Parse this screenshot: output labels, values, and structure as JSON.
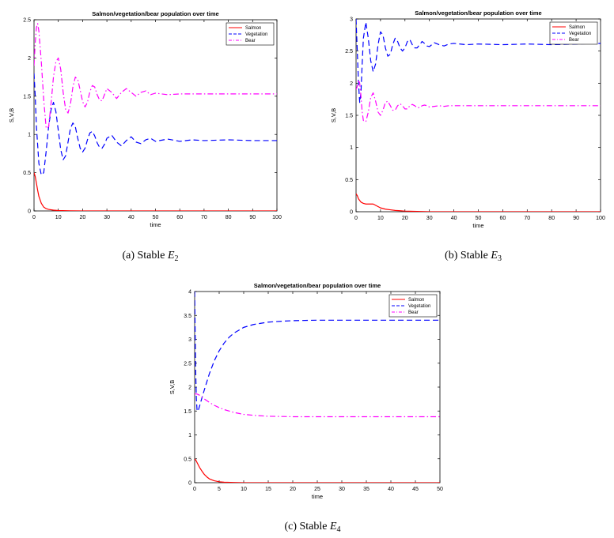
{
  "figures": [
    {
      "caption_prefix": "(a)  Stable ",
      "caption_var": "E",
      "caption_sub": "2"
    },
    {
      "caption_prefix": "(b)  Stable ",
      "caption_var": "E",
      "caption_sub": "3"
    },
    {
      "caption_prefix": "(c)  Stable ",
      "caption_var": "E",
      "caption_sub": "4"
    }
  ],
  "chart_data": [
    {
      "type": "line",
      "title": "Salmon/vegetation/bear population over time",
      "xlabel": "time",
      "ylabel": "S,V,B",
      "xlim": [
        0,
        100
      ],
      "ylim": [
        0,
        2.5
      ],
      "xticks": [
        0,
        10,
        20,
        30,
        40,
        50,
        60,
        70,
        80,
        90,
        100
      ],
      "yticks": [
        0,
        0.5,
        1,
        1.5,
        2,
        2.5
      ],
      "ytick_labels": [
        "0",
        "0.5",
        "1",
        "1.5",
        "2",
        "2.5"
      ],
      "legend_position": "top-right",
      "series": [
        {
          "name": "Salmon",
          "color": "#ff0000",
          "dash": "solid",
          "x": [
            0,
            0.5,
            1,
            1.5,
            2,
            3,
            4,
            5,
            6,
            8,
            10,
            15,
            20,
            100
          ],
          "y": [
            0.5,
            0.45,
            0.36,
            0.27,
            0.19,
            0.1,
            0.05,
            0.03,
            0.02,
            0.01,
            0.005,
            0.002,
            0,
            0
          ]
        },
        {
          "name": "Vegetation",
          "color": "#0000ff",
          "dash": "dashed",
          "x": [
            0,
            0.5,
            1,
            2,
            3,
            4,
            5,
            6,
            7,
            8,
            9,
            10,
            11,
            12,
            13,
            14,
            15,
            16,
            17,
            18,
            19,
            20,
            21,
            22,
            23,
            24,
            25,
            26,
            27,
            28,
            29,
            30,
            32,
            34,
            36,
            38,
            40,
            42,
            44,
            46,
            48,
            50,
            55,
            60,
            65,
            70,
            80,
            90,
            100
          ],
          "y": [
            1.8,
            1.5,
            1.1,
            0.62,
            0.47,
            0.5,
            0.78,
            1.1,
            1.32,
            1.42,
            1.3,
            1.05,
            0.8,
            0.67,
            0.72,
            0.9,
            1.08,
            1.15,
            1.1,
            0.95,
            0.82,
            0.77,
            0.82,
            0.93,
            1.02,
            1.04,
            0.98,
            0.89,
            0.83,
            0.82,
            0.87,
            0.95,
            0.99,
            0.9,
            0.85,
            0.92,
            0.97,
            0.9,
            0.88,
            0.93,
            0.95,
            0.91,
            0.94,
            0.91,
            0.93,
            0.92,
            0.93,
            0.92,
            0.92
          ]
        },
        {
          "name": "Bear",
          "color": "#ff00ff",
          "dash": "dashdot",
          "x": [
            0,
            0.5,
            1,
            1.5,
            2,
            3,
            4,
            5,
            6,
            7,
            8,
            9,
            10,
            11,
            12,
            13,
            14,
            15,
            16,
            17,
            18,
            19,
            20,
            21,
            22,
            23,
            24,
            25,
            26,
            27,
            28,
            29,
            30,
            32,
            34,
            36,
            38,
            40,
            42,
            44,
            46,
            48,
            50,
            55,
            60,
            65,
            70,
            80,
            90,
            100
          ],
          "y": [
            1.9,
            2.2,
            2.4,
            2.45,
            2.35,
            1.95,
            1.45,
            1.08,
            1.1,
            1.4,
            1.75,
            1.95,
            2.0,
            1.85,
            1.55,
            1.33,
            1.28,
            1.4,
            1.62,
            1.75,
            1.72,
            1.58,
            1.43,
            1.36,
            1.42,
            1.56,
            1.64,
            1.62,
            1.52,
            1.45,
            1.44,
            1.52,
            1.6,
            1.55,
            1.47,
            1.55,
            1.6,
            1.55,
            1.5,
            1.55,
            1.57,
            1.52,
            1.54,
            1.52,
            1.53,
            1.53,
            1.53,
            1.53,
            1.53,
            1.53
          ]
        }
      ]
    },
    {
      "type": "line",
      "title": "Salmon/vegetation/bear population over time",
      "xlabel": "time",
      "ylabel": "S,V,B",
      "xlim": [
        0,
        100
      ],
      "ylim": [
        0,
        3
      ],
      "xticks": [
        0,
        10,
        20,
        30,
        40,
        50,
        60,
        70,
        80,
        90,
        100
      ],
      "yticks": [
        0,
        0.5,
        1,
        1.5,
        2,
        2.5,
        3
      ],
      "ytick_labels": [
        "0",
        "0.5",
        "1",
        "1.5",
        "2",
        "2.5",
        "3"
      ],
      "legend_position": "top-right",
      "series": [
        {
          "name": "Salmon",
          "color": "#ff0000",
          "dash": "solid",
          "x": [
            0,
            0.5,
            1,
            2,
            3,
            4,
            5,
            6,
            7,
            8,
            9,
            10,
            12,
            14,
            16,
            18,
            20,
            25,
            30,
            100
          ],
          "y": [
            0.28,
            0.25,
            0.2,
            0.15,
            0.13,
            0.12,
            0.12,
            0.12,
            0.12,
            0.1,
            0.08,
            0.06,
            0.04,
            0.03,
            0.02,
            0.015,
            0.01,
            0.005,
            0,
            0
          ]
        },
        {
          "name": "Vegetation",
          "color": "#0000ff",
          "dash": "dashed",
          "x": [
            0,
            0.5,
            1,
            1.5,
            2,
            2.5,
            3,
            4,
            5,
            6,
            7,
            8,
            9,
            10,
            11,
            12,
            13,
            14,
            15,
            16,
            17,
            18,
            19,
            20,
            21,
            22,
            23,
            24,
            25,
            26,
            27,
            28,
            29,
            30,
            32,
            34,
            36,
            38,
            40,
            45,
            50,
            60,
            70,
            80,
            90,
            100
          ],
          "y": [
            3.0,
            2.5,
            2.0,
            1.7,
            1.85,
            2.3,
            2.7,
            2.95,
            2.7,
            2.35,
            2.18,
            2.3,
            2.6,
            2.8,
            2.75,
            2.55,
            2.42,
            2.45,
            2.6,
            2.7,
            2.65,
            2.55,
            2.5,
            2.55,
            2.65,
            2.68,
            2.6,
            2.55,
            2.55,
            2.6,
            2.65,
            2.62,
            2.58,
            2.57,
            2.63,
            2.6,
            2.58,
            2.61,
            2.62,
            2.6,
            2.61,
            2.6,
            2.61,
            2.6,
            2.61,
            2.62
          ]
        },
        {
          "name": "Bear",
          "color": "#ff00ff",
          "dash": "dashdot",
          "x": [
            0,
            0.5,
            1,
            1.5,
            2,
            2.5,
            3,
            4,
            5,
            6,
            7,
            8,
            9,
            10,
            11,
            12,
            13,
            14,
            15,
            16,
            17,
            18,
            19,
            20,
            21,
            22,
            23,
            24,
            25,
            26,
            27,
            28,
            29,
            30,
            32,
            34,
            36,
            38,
            40,
            45,
            50,
            60,
            70,
            80,
            90,
            100
          ],
          "y": [
            1.9,
            1.95,
            2.05,
            2.0,
            1.8,
            1.55,
            1.42,
            1.4,
            1.55,
            1.78,
            1.85,
            1.72,
            1.55,
            1.5,
            1.58,
            1.7,
            1.72,
            1.65,
            1.58,
            1.58,
            1.65,
            1.68,
            1.65,
            1.6,
            1.6,
            1.65,
            1.67,
            1.65,
            1.62,
            1.62,
            1.65,
            1.66,
            1.65,
            1.63,
            1.64,
            1.65,
            1.64,
            1.65,
            1.65,
            1.65,
            1.65,
            1.65,
            1.65,
            1.65,
            1.65,
            1.65
          ]
        }
      ]
    },
    {
      "type": "line",
      "title": "Salmon/vegetation/bear population over time",
      "xlabel": "time",
      "ylabel": "S,V,B",
      "xlim": [
        0,
        50
      ],
      "ylim": [
        0,
        4
      ],
      "xticks": [
        0,
        5,
        10,
        15,
        20,
        25,
        30,
        35,
        40,
        45,
        50
      ],
      "yticks": [
        0,
        0.5,
        1,
        1.5,
        2,
        2.5,
        3,
        3.5,
        4
      ],
      "ytick_labels": [
        "0",
        "0.5",
        "1",
        "1.5",
        "2",
        "2.5",
        "3",
        "3.5",
        "4"
      ],
      "legend_position": "top-right",
      "series": [
        {
          "name": "Salmon",
          "color": "#ff0000",
          "dash": "solid",
          "x": [
            0,
            0.25,
            0.5,
            1,
            1.5,
            2,
            2.5,
            3,
            4,
            5,
            6,
            8,
            10,
            50
          ],
          "y": [
            0.5,
            0.47,
            0.42,
            0.32,
            0.24,
            0.17,
            0.12,
            0.08,
            0.04,
            0.02,
            0.01,
            0.004,
            0,
            0
          ]
        },
        {
          "name": "Vegetation",
          "color": "#0000ff",
          "dash": "dashed",
          "x": [
            0,
            0.1,
            0.2,
            0.35,
            0.5,
            0.7,
            1,
            1.5,
            2,
            3,
            4,
            5,
            6,
            7,
            8,
            10,
            12,
            15,
            18,
            20,
            25,
            30,
            35,
            40,
            45,
            50
          ],
          "y": [
            4.0,
            3.2,
            2.4,
            1.75,
            1.5,
            1.5,
            1.6,
            1.78,
            1.95,
            2.28,
            2.55,
            2.76,
            2.92,
            3.04,
            3.13,
            3.25,
            3.31,
            3.36,
            3.38,
            3.39,
            3.4,
            3.4,
            3.4,
            3.4,
            3.4,
            3.4
          ]
        },
        {
          "name": "Bear",
          "color": "#ff00ff",
          "dash": "dashdot",
          "x": [
            0,
            0.3,
            0.6,
            1,
            2,
            3,
            4,
            5,
            6,
            8,
            10,
            12,
            15,
            18,
            20,
            25,
            30,
            35,
            40,
            45,
            50
          ],
          "y": [
            1.85,
            1.86,
            1.85,
            1.83,
            1.75,
            1.68,
            1.62,
            1.57,
            1.53,
            1.47,
            1.43,
            1.41,
            1.39,
            1.385,
            1.38,
            1.38,
            1.38,
            1.38,
            1.38,
            1.38,
            1.38
          ]
        }
      ]
    }
  ]
}
